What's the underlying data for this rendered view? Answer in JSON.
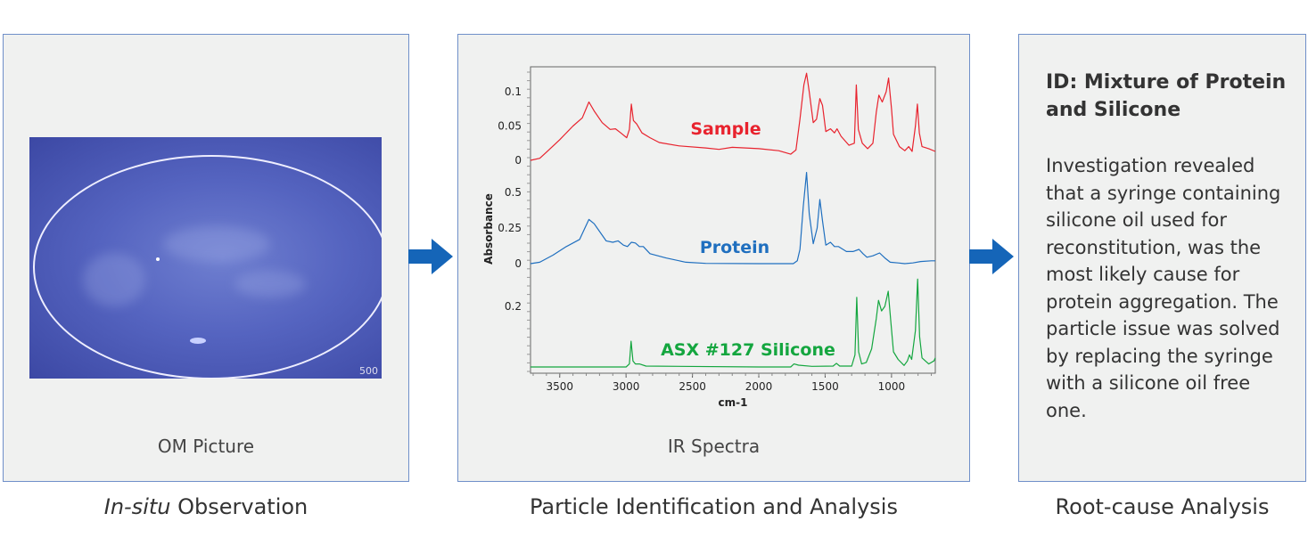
{
  "panels": {
    "observation": {
      "caption": "OM Picture",
      "title_italic": "In-situ",
      "title_rest": " Observation",
      "scale_label": "500"
    },
    "identification": {
      "caption": "IR Spectra",
      "title": "Particle Identification and Analysis"
    },
    "rootcause": {
      "heading": "ID: Mixture of Protein and Silicone",
      "body": "Investigation revealed that a syringe containing silicone oil used for reconstitution, was the most likely cause for protein aggregation. The particle issue was solved by replacing the syringe with a silicone oil free one.",
      "title": "Root-cause Analysis"
    }
  },
  "colors": {
    "arrow": "#1565b8",
    "border": "#6f8fc9"
  },
  "chart_data": {
    "type": "line",
    "xlabel": "cm-1",
    "ylabel": "Absorbance",
    "xlim": [
      3720,
      670
    ],
    "xticks": [
      3500,
      3000,
      2500,
      2000,
      1500,
      1000
    ],
    "series": [
      {
        "name": "Sample",
        "color": "#e8232e",
        "yticks": [
          "0",
          "0.05",
          "0.1"
        ],
        "ytickvals": [
          0,
          0.05,
          0.1
        ],
        "points": [
          [
            3720,
            0
          ],
          [
            3650,
            0.003
          ],
          [
            3600,
            0.012
          ],
          [
            3500,
            0.03
          ],
          [
            3400,
            0.05
          ],
          [
            3330,
            0.062
          ],
          [
            3280,
            0.085
          ],
          [
            3240,
            0.072
          ],
          [
            3180,
            0.055
          ],
          [
            3120,
            0.045
          ],
          [
            3080,
            0.046
          ],
          [
            3040,
            0.04
          ],
          [
            2995,
            0.033
          ],
          [
            2975,
            0.045
          ],
          [
            2960,
            0.082
          ],
          [
            2945,
            0.058
          ],
          [
            2920,
            0.053
          ],
          [
            2880,
            0.04
          ],
          [
            2820,
            0.033
          ],
          [
            2750,
            0.026
          ],
          [
            2600,
            0.021
          ],
          [
            2400,
            0.018
          ],
          [
            2300,
            0.016
          ],
          [
            2200,
            0.019
          ],
          [
            2000,
            0.017
          ],
          [
            1850,
            0.014
          ],
          [
            1760,
            0.009
          ],
          [
            1720,
            0.015
          ],
          [
            1690,
            0.06
          ],
          [
            1660,
            0.11
          ],
          [
            1640,
            0.127
          ],
          [
            1620,
            0.1
          ],
          [
            1590,
            0.055
          ],
          [
            1565,
            0.06
          ],
          [
            1540,
            0.09
          ],
          [
            1520,
            0.08
          ],
          [
            1495,
            0.042
          ],
          [
            1460,
            0.046
          ],
          [
            1430,
            0.04
          ],
          [
            1410,
            0.046
          ],
          [
            1380,
            0.035
          ],
          [
            1320,
            0.022
          ],
          [
            1280,
            0.025
          ],
          [
            1265,
            0.11
          ],
          [
            1250,
            0.045
          ],
          [
            1220,
            0.025
          ],
          [
            1180,
            0.017
          ],
          [
            1140,
            0.025
          ],
          [
            1115,
            0.07
          ],
          [
            1095,
            0.095
          ],
          [
            1070,
            0.085
          ],
          [
            1040,
            0.1
          ],
          [
            1022,
            0.12
          ],
          [
            1000,
            0.075
          ],
          [
            985,
            0.038
          ],
          [
            940,
            0.02
          ],
          [
            900,
            0.014
          ],
          [
            870,
            0.02
          ],
          [
            845,
            0.013
          ],
          [
            820,
            0.05
          ],
          [
            805,
            0.082
          ],
          [
            790,
            0.04
          ],
          [
            770,
            0.02
          ],
          [
            720,
            0.017
          ],
          [
            670,
            0.013
          ]
        ]
      },
      {
        "name": "Protein",
        "color": "#1f6fbf",
        "yticks": [
          "0",
          "0.25",
          "0.5"
        ],
        "ytickvals": [
          0,
          0.25,
          0.5
        ],
        "points": [
          [
            3720,
            0
          ],
          [
            3650,
            0.01
          ],
          [
            3550,
            0.06
          ],
          [
            3450,
            0.12
          ],
          [
            3350,
            0.17
          ],
          [
            3310,
            0.25
          ],
          [
            3280,
            0.31
          ],
          [
            3240,
            0.28
          ],
          [
            3150,
            0.16
          ],
          [
            3100,
            0.15
          ],
          [
            3060,
            0.16
          ],
          [
            3020,
            0.13
          ],
          [
            2990,
            0.12
          ],
          [
            2960,
            0.15
          ],
          [
            2930,
            0.145
          ],
          [
            2900,
            0.12
          ],
          [
            2870,
            0.12
          ],
          [
            2820,
            0.07
          ],
          [
            2700,
            0.04
          ],
          [
            2550,
            0.01
          ],
          [
            2400,
            0.002
          ],
          [
            2000,
            0
          ],
          [
            1800,
            0
          ],
          [
            1740,
            0
          ],
          [
            1710,
            0.02
          ],
          [
            1690,
            0.1
          ],
          [
            1665,
            0.4
          ],
          [
            1640,
            0.64
          ],
          [
            1620,
            0.35
          ],
          [
            1590,
            0.14
          ],
          [
            1560,
            0.25
          ],
          [
            1540,
            0.45
          ],
          [
            1520,
            0.3
          ],
          [
            1495,
            0.13
          ],
          [
            1460,
            0.15
          ],
          [
            1430,
            0.12
          ],
          [
            1400,
            0.12
          ],
          [
            1340,
            0.085
          ],
          [
            1290,
            0.085
          ],
          [
            1245,
            0.1
          ],
          [
            1215,
            0.07
          ],
          [
            1185,
            0.045
          ],
          [
            1140,
            0.055
          ],
          [
            1090,
            0.075
          ],
          [
            1050,
            0.04
          ],
          [
            1010,
            0.01
          ],
          [
            950,
            0.005
          ],
          [
            900,
            0
          ],
          [
            840,
            0.005
          ],
          [
            780,
            0.015
          ],
          [
            700,
            0.02
          ],
          [
            670,
            0.02
          ]
        ]
      },
      {
        "name": "ASX #127 Silicone",
        "color": "#14a63f",
        "yticks": [
          "0.2"
        ],
        "ytickvals": [
          0.2
        ],
        "points": [
          [
            3720,
            0
          ],
          [
            3000,
            0
          ],
          [
            2975,
            0.01
          ],
          [
            2962,
            0.085
          ],
          [
            2948,
            0.02
          ],
          [
            2930,
            0.01
          ],
          [
            2900,
            0.01
          ],
          [
            2850,
            0.003
          ],
          [
            2000,
            0
          ],
          [
            1760,
            0
          ],
          [
            1735,
            0.01
          ],
          [
            1700,
            0.006
          ],
          [
            1600,
            0.002
          ],
          [
            1440,
            0.003
          ],
          [
            1415,
            0.012
          ],
          [
            1390,
            0.003
          ],
          [
            1300,
            0.003
          ],
          [
            1275,
            0.04
          ],
          [
            1262,
            0.23
          ],
          [
            1248,
            0.05
          ],
          [
            1225,
            0.01
          ],
          [
            1190,
            0.015
          ],
          [
            1150,
            0.06
          ],
          [
            1115,
            0.16
          ],
          [
            1098,
            0.22
          ],
          [
            1075,
            0.185
          ],
          [
            1050,
            0.2
          ],
          [
            1025,
            0.25
          ],
          [
            1005,
            0.15
          ],
          [
            985,
            0.05
          ],
          [
            950,
            0.025
          ],
          [
            905,
            0.005
          ],
          [
            880,
            0.02
          ],
          [
            865,
            0.04
          ],
          [
            848,
            0.025
          ],
          [
            820,
            0.12
          ],
          [
            803,
            0.29
          ],
          [
            788,
            0.1
          ],
          [
            770,
            0.03
          ],
          [
            720,
            0.01
          ],
          [
            680,
            0.02
          ],
          [
            670,
            0.03
          ]
        ]
      }
    ]
  }
}
